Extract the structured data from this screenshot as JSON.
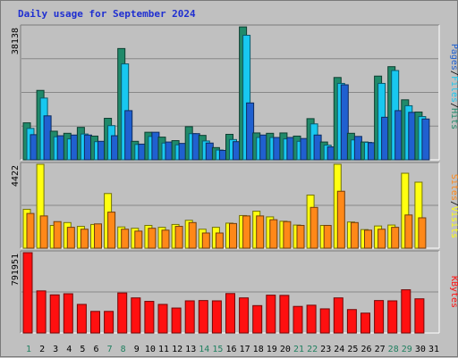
{
  "title": "Daily usage for September 2024",
  "colors": {
    "hits": "#208a6a",
    "files": "#18c8f0",
    "pages": "#2060d0",
    "visits": "#ffff10",
    "sites": "#ff8818",
    "kbytes": "#ff1010",
    "weekend": "#208060",
    "weekday": "#000000"
  },
  "chart_data": [
    {
      "type": "bar",
      "name": "hits-files-pages",
      "max_label": "38138",
      "ylim": [
        0,
        38138
      ],
      "side_label_parts": [
        {
          "text": "Pages",
          "color_key": "pages"
        },
        {
          "text": "/",
          "color_key": "weekday"
        },
        {
          "text": "Files",
          "color_key": "files"
        },
        {
          "text": "/",
          "color_key": "weekday"
        },
        {
          "text": "Hits",
          "color_key": "hits"
        }
      ],
      "categories": [
        "1",
        "2",
        "3",
        "4",
        "5",
        "6",
        "7",
        "8",
        "9",
        "10",
        "11",
        "12",
        "13",
        "14",
        "15",
        "16",
        "17",
        "18",
        "19",
        "20",
        "21",
        "22",
        "23",
        "24",
        "25",
        "26",
        "27",
        "28",
        "29",
        "30",
        "31"
      ],
      "series": [
        {
          "name": "Hits",
          "color_key": "hits",
          "values": [
            10600,
            19900,
            8200,
            7600,
            9300,
            6800,
            11900,
            31900,
            5300,
            7900,
            6500,
            5500,
            9500,
            7000,
            3500,
            7300,
            38100,
            7700,
            7600,
            7700,
            6800,
            11800,
            5100,
            23600,
            7600,
            5100,
            24000,
            26700,
            17200,
            13700,
            0
          ]
        },
        {
          "name": "Files",
          "color_key": "files",
          "values": [
            9000,
            17700,
            6600,
            6000,
            7400,
            5200,
            9800,
            27500,
            4400,
            6700,
            4800,
            4300,
            7500,
            5400,
            2800,
            5800,
            35700,
            6400,
            6400,
            6000,
            5300,
            10300,
            4200,
            21900,
            5700,
            5000,
            21900,
            25600,
            15500,
            12400,
            0
          ]
        },
        {
          "name": "Pages",
          "color_key": "pages",
          "values": [
            7200,
            12600,
            6900,
            7100,
            7100,
            5300,
            6900,
            14100,
            4500,
            7900,
            5100,
            4700,
            7500,
            4800,
            2700,
            5200,
            16300,
            7100,
            6400,
            6400,
            6100,
            7100,
            3700,
            21500,
            6700,
            4900,
            12200,
            14100,
            13600,
            11700,
            0
          ]
        }
      ]
    },
    {
      "type": "bar",
      "name": "visits-sites",
      "max_label": "4422",
      "ylim": [
        0,
        4422
      ],
      "side_label_parts": [
        {
          "text": "Sites",
          "color_key": "sites"
        },
        {
          "text": "/",
          "color_key": "weekday"
        },
        {
          "text": "Visits",
          "color_key": "visits"
        }
      ],
      "categories": [
        "1",
        "2",
        "3",
        "4",
        "5",
        "6",
        "7",
        "8",
        "9",
        "10",
        "11",
        "12",
        "13",
        "14",
        "15",
        "16",
        "17",
        "18",
        "19",
        "20",
        "21",
        "22",
        "23",
        "24",
        "25",
        "26",
        "27",
        "28",
        "29",
        "30",
        "31"
      ],
      "series": [
        {
          "name": "Visits",
          "color_key": "visits",
          "values": [
            2050,
            4422,
            1200,
            1350,
            1150,
            1250,
            2880,
            1120,
            1050,
            1200,
            1100,
            1250,
            1470,
            1000,
            1100,
            1320,
            1720,
            1950,
            1650,
            1420,
            1220,
            2800,
            1200,
            4422,
            1380,
            980,
            1170,
            1220,
            3950,
            3480,
            0
          ]
        },
        {
          "name": "Sites",
          "color_key": "sites",
          "values": [
            1830,
            1700,
            1400,
            1100,
            1000,
            1280,
            1900,
            1000,
            900,
            1050,
            950,
            1150,
            1350,
            800,
            800,
            1300,
            1700,
            1700,
            1500,
            1400,
            1200,
            2150,
            1200,
            3000,
            1350,
            950,
            1000,
            1100,
            1750,
            1600,
            0
          ]
        }
      ]
    },
    {
      "type": "bar",
      "name": "kbytes",
      "max_label": "791951",
      "ylim": [
        0,
        791951
      ],
      "side_label_parts": [
        {
          "text": "KBytes",
          "color_key": "kbytes"
        }
      ],
      "categories": [
        "1",
        "2",
        "3",
        "4",
        "5",
        "6",
        "7",
        "8",
        "9",
        "10",
        "11",
        "12",
        "13",
        "14",
        "15",
        "16",
        "17",
        "18",
        "19",
        "20",
        "21",
        "22",
        "23",
        "24",
        "25",
        "26",
        "27",
        "28",
        "29",
        "30",
        "31"
      ],
      "series": [
        {
          "name": "KBytes",
          "color_key": "kbytes",
          "values": [
            791951,
            415000,
            376000,
            387000,
            282000,
            213000,
            213000,
            395000,
            346000,
            312000,
            282000,
            246000,
            317000,
            320000,
            317000,
            389000,
            346000,
            270000,
            373000,
            371000,
            262000,
            274000,
            238000,
            346000,
            231000,
            196000,
            320000,
            317000,
            426000,
            337000,
            0
          ]
        }
      ]
    }
  ],
  "xaxis": {
    "labels": [
      "1",
      "2",
      "3",
      "4",
      "5",
      "6",
      "7",
      "8",
      "9",
      "10",
      "11",
      "12",
      "13",
      "14",
      "15",
      "16",
      "17",
      "18",
      "19",
      "20",
      "21",
      "22",
      "23",
      "24",
      "25",
      "26",
      "27",
      "28",
      "29",
      "30",
      "31"
    ],
    "weekend_days": [
      "1",
      "7",
      "8",
      "14",
      "15",
      "21",
      "22",
      "28",
      "29"
    ]
  }
}
